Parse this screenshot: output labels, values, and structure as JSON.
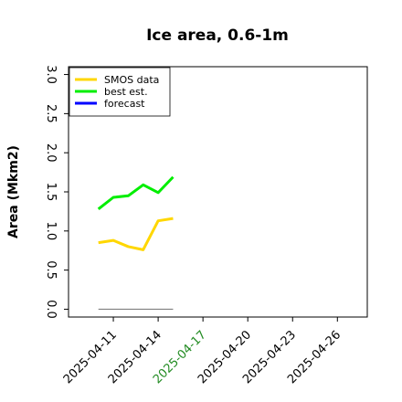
{
  "chart_data": {
    "type": "line",
    "title": "Ice area, 0.6-1m",
    "ylabel": "Area (Mkm2)",
    "x": [
      "2025-04-10",
      "2025-04-11",
      "2025-04-12",
      "2025-04-13",
      "2025-04-14",
      "2025-04-15"
    ],
    "series": [
      {
        "name": "SMOS data",
        "color": "#ffd700",
        "values": [
          0.85,
          0.88,
          0.8,
          0.76,
          1.13,
          1.16
        ]
      },
      {
        "name": "best est.",
        "color": "#00ee00",
        "values": [
          1.28,
          1.43,
          1.45,
          1.59,
          1.49,
          1.69
        ]
      },
      {
        "name": "forecast",
        "color": "#0000ff",
        "values": [
          null,
          null,
          null,
          null,
          null,
          null
        ]
      },
      {
        "color": "#808080",
        "values": [
          0,
          0,
          0,
          0,
          0,
          0
        ]
      }
    ],
    "xlim": [
      "2025-04-08",
      "2025-04-28"
    ],
    "xticks": [
      "2025-04-11",
      "2025-04-14",
      "2025-04-17",
      "2025-04-20",
      "2025-04-23",
      "2025-04-26"
    ],
    "today": "2025-04-17",
    "today_color": "#228b22",
    "ylim": [
      -0.1,
      3.1
    ],
    "yticks": [
      {
        "value": 0,
        "label": "0.0"
      },
      {
        "value": 0.5,
        "label": "0.5"
      },
      {
        "value": 1,
        "label": "1.0"
      },
      {
        "value": 1.5,
        "label": "1.5"
      },
      {
        "value": 2,
        "label": "2.0"
      },
      {
        "value": 2.5,
        "label": "2.5"
      },
      {
        "value": 3,
        "label": "3.0"
      }
    ],
    "legend": "upper left"
  }
}
